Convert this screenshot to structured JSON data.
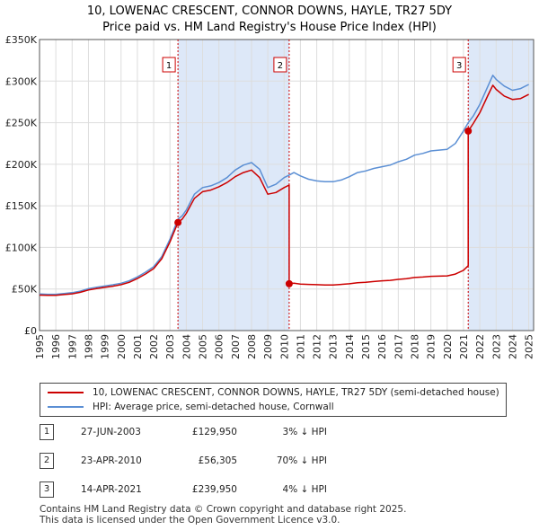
{
  "title": {
    "line1": "10, LOWENAC CRESCENT, CONNOR DOWNS, HAYLE, TR27 5DY",
    "line2": "Price paid vs. HM Land Registry's House Price Index (HPI)"
  },
  "chart_data": {
    "type": "line",
    "title": "10, LOWENAC CRESCENT, CONNOR DOWNS, HAYLE, TR27 5DY",
    "subtitle": "Price paid vs. HM Land Registry's House Price Index (HPI)",
    "xlabel": "",
    "ylabel": "",
    "xlim": [
      1995.0,
      2025.3
    ],
    "ylim": [
      0,
      350000
    ],
    "y_ticks": [
      0,
      50000,
      100000,
      150000,
      200000,
      250000,
      300000,
      350000
    ],
    "y_tick_labels": [
      "£0",
      "£50K",
      "£100K",
      "£150K",
      "£200K",
      "£250K",
      "£300K",
      "£350K"
    ],
    "x_ticks": [
      1995,
      1996,
      1997,
      1998,
      1999,
      2000,
      2001,
      2002,
      2003,
      2004,
      2005,
      2006,
      2007,
      2008,
      2009,
      2010,
      2011,
      2012,
      2013,
      2014,
      2015,
      2016,
      2017,
      2018,
      2019,
      2020,
      2021,
      2022,
      2023,
      2024,
      2025
    ],
    "x_tick_labels": [
      "1995",
      "1996",
      "1997",
      "1998",
      "1999",
      "2000",
      "2001",
      "2002",
      "2003",
      "2004",
      "2005",
      "2006",
      "2007",
      "2008",
      "2009",
      "2010",
      "2011",
      "2012",
      "2013",
      "2014",
      "2015",
      "2016",
      "2017",
      "2018",
      "2019",
      "2020",
      "2021",
      "2022",
      "2023",
      "2024",
      "2025"
    ],
    "grid": true,
    "series": [
      {
        "name": "10, LOWENAC CRESCENT, CONNOR DOWNS, HAYLE, TR27 5DY (semi-detached house)",
        "color": "#cc0000",
        "points": [
          [
            1995.0,
            42700
          ],
          [
            1995.5,
            42300
          ],
          [
            1996.0,
            42300
          ],
          [
            1996.5,
            43300
          ],
          [
            1997.0,
            44200
          ],
          [
            1997.5,
            46000
          ],
          [
            1998.0,
            48800
          ],
          [
            1998.5,
            50600
          ],
          [
            1999.0,
            52000
          ],
          [
            1999.5,
            53400
          ],
          [
            2000.0,
            55200
          ],
          [
            2000.5,
            58000
          ],
          [
            2001.0,
            62600
          ],
          [
            2001.5,
            68100
          ],
          [
            2002.0,
            74500
          ],
          [
            2002.5,
            86400
          ],
          [
            2003.0,
            106600
          ],
          [
            2003.49,
            129950
          ],
          [
            2003.75,
            134000
          ],
          [
            2004.0,
            141000
          ],
          [
            2004.5,
            159000
          ],
          [
            2005.0,
            167000
          ],
          [
            2005.5,
            169000
          ],
          [
            2006.0,
            173000
          ],
          [
            2006.5,
            178000
          ],
          [
            2007.0,
            185000
          ],
          [
            2007.5,
            190000
          ],
          [
            2008.0,
            193000
          ],
          [
            2008.5,
            184000
          ],
          [
            2009.0,
            164000
          ],
          [
            2009.5,
            166000
          ],
          [
            2010.0,
            172000
          ],
          [
            2010.31,
            175000
          ],
          [
            2010.31,
            56305
          ],
          [
            2010.6,
            57000
          ],
          [
            2011.0,
            56000
          ],
          [
            2011.5,
            55500
          ],
          [
            2012.0,
            55200
          ],
          [
            2012.5,
            54900
          ],
          [
            2013.0,
            54900
          ],
          [
            2013.5,
            55500
          ],
          [
            2014.0,
            56300
          ],
          [
            2014.5,
            57600
          ],
          [
            2015.0,
            58100
          ],
          [
            2015.5,
            59000
          ],
          [
            2016.0,
            59800
          ],
          [
            2016.5,
            60400
          ],
          [
            2017.0,
            61600
          ],
          [
            2017.5,
            62400
          ],
          [
            2018.0,
            63800
          ],
          [
            2018.5,
            64400
          ],
          [
            2019.0,
            65200
          ],
          [
            2019.5,
            65500
          ],
          [
            2020.0,
            65800
          ],
          [
            2020.5,
            68000
          ],
          [
            2021.0,
            72500
          ],
          [
            2021.29,
            78000
          ],
          [
            2021.29,
            239950
          ],
          [
            2021.6,
            249000
          ],
          [
            2022.0,
            262000
          ],
          [
            2022.5,
            283000
          ],
          [
            2022.8,
            295000
          ],
          [
            2023.0,
            290000
          ],
          [
            2023.5,
            282000
          ],
          [
            2024.0,
            278000
          ],
          [
            2024.5,
            279000
          ],
          [
            2025.0,
            284000
          ]
        ]
      },
      {
        "name": "HPI: Average price, semi-detached house, Cornwall",
        "color": "#5b8fd4",
        "points": [
          [
            1995.0,
            44000
          ],
          [
            1995.5,
            43600
          ],
          [
            1996.0,
            43600
          ],
          [
            1996.5,
            44600
          ],
          [
            1997.0,
            45600
          ],
          [
            1997.5,
            47400
          ],
          [
            1998.0,
            50300
          ],
          [
            1998.5,
            52200
          ],
          [
            1999.0,
            53600
          ],
          [
            1999.5,
            55100
          ],
          [
            2000.0,
            56900
          ],
          [
            2000.5,
            59800
          ],
          [
            2001.0,
            64500
          ],
          [
            2001.5,
            70200
          ],
          [
            2002.0,
            76800
          ],
          [
            2002.5,
            89000
          ],
          [
            2003.0,
            110000
          ],
          [
            2003.49,
            134000
          ],
          [
            2003.75,
            138000
          ],
          [
            2004.0,
            145000
          ],
          [
            2004.5,
            164000
          ],
          [
            2005.0,
            172000
          ],
          [
            2005.5,
            174000
          ],
          [
            2006.0,
            178000
          ],
          [
            2006.5,
            184000
          ],
          [
            2007.0,
            193000
          ],
          [
            2007.5,
            199000
          ],
          [
            2008.0,
            202000
          ],
          [
            2008.5,
            194000
          ],
          [
            2009.0,
            172000
          ],
          [
            2009.5,
            176000
          ],
          [
            2010.0,
            184000
          ],
          [
            2010.31,
            187000
          ],
          [
            2010.6,
            190000
          ],
          [
            2011.0,
            186000
          ],
          [
            2011.5,
            182000
          ],
          [
            2012.0,
            180000
          ],
          [
            2012.5,
            179000
          ],
          [
            2013.0,
            179000
          ],
          [
            2013.5,
            181000
          ],
          [
            2014.0,
            185000
          ],
          [
            2014.5,
            190000
          ],
          [
            2015.0,
            192000
          ],
          [
            2015.5,
            195000
          ],
          [
            2016.0,
            197000
          ],
          [
            2016.5,
            199000
          ],
          [
            2017.0,
            203000
          ],
          [
            2017.5,
            206000
          ],
          [
            2018.0,
            211000
          ],
          [
            2018.5,
            213000
          ],
          [
            2019.0,
            216000
          ],
          [
            2019.5,
            217000
          ],
          [
            2020.0,
            218000
          ],
          [
            2020.5,
            225000
          ],
          [
            2021.0,
            240000
          ],
          [
            2021.29,
            250000
          ],
          [
            2021.6,
            258000
          ],
          [
            2022.0,
            272000
          ],
          [
            2022.5,
            294000
          ],
          [
            2022.8,
            307000
          ],
          [
            2023.0,
            302000
          ],
          [
            2023.5,
            294000
          ],
          [
            2024.0,
            289000
          ],
          [
            2024.5,
            291000
          ],
          [
            2025.0,
            296000
          ]
        ]
      }
    ],
    "sales": [
      {
        "id": "1",
        "x": 2003.49,
        "y": 129950
      },
      {
        "id": "2",
        "x": 2010.31,
        "y": 56305
      },
      {
        "id": "3",
        "x": 2021.29,
        "y": 239950
      }
    ],
    "shaded_periods": [
      [
        2003.49,
        2010.31
      ],
      [
        2021.29,
        2025.3
      ]
    ],
    "colors": {
      "price_line": "#cc0000",
      "hpi_line": "#5b8fd4",
      "shade": "#dde8f8",
      "marker_line": "#cc0000",
      "grid": "#dddddd",
      "axis": "#555555"
    }
  },
  "legend": {
    "price_label": "10, LOWENAC CRESCENT, CONNOR DOWNS, HAYLE, TR27 5DY (semi-detached house)",
    "hpi_label": "HPI: Average price, semi-detached house, Cornwall"
  },
  "transactions": [
    {
      "num": "1",
      "date": "27-JUN-2003",
      "price": "£129,950",
      "pct": "3% ↓ HPI"
    },
    {
      "num": "2",
      "date": "23-APR-2010",
      "price": "£56,305",
      "pct": "70% ↓ HPI"
    },
    {
      "num": "3",
      "date": "14-APR-2021",
      "price": "£239,950",
      "pct": "4% ↓ HPI"
    }
  ],
  "footer": {
    "line1": "Contains HM Land Registry data © Crown copyright and database right 2025.",
    "line2": "This data is licensed under the Open Government Licence v3.0."
  }
}
